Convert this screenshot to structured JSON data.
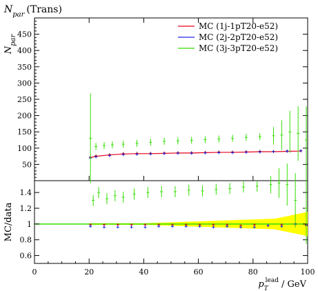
{
  "title": "N_par (Trans)",
  "chart_data": [
    {
      "panel": "main",
      "type": "scatter",
      "ylabel": "N_par",
      "xlabel": "",
      "xlim": [
        0,
        100
      ],
      "ylim": [
        0,
        500
      ],
      "yticks": [
        50,
        100,
        150,
        200,
        250,
        300,
        350,
        400,
        450
      ],
      "legend_position": "top-right",
      "colors": {
        "data": "#000000",
        "mc1": "#e8001a",
        "mc2": "#2020e8",
        "mc3": "#33dd00"
      },
      "series": [
        {
          "name": "data",
          "x": [
            20.5,
            22.5,
            27.5,
            32.5,
            37.5,
            42.5,
            47.5,
            52.5,
            57.5,
            62.5,
            67.5,
            72.5,
            77.5,
            82.5,
            87.5,
            92.5,
            97.5
          ],
          "y": [
            72,
            76,
            80,
            83,
            84,
            84,
            85,
            86,
            86,
            87,
            88,
            88,
            89,
            90,
            90,
            91,
            92
          ]
        },
        {
          "name": "MC (1j-1pT20-e52)",
          "x": [
            20.5,
            22.5,
            27.5,
            32.5,
            37.5,
            42.5,
            47.5,
            52.5,
            57.5,
            62.5,
            67.5,
            72.5,
            77.5,
            82.5,
            87.5,
            92.5,
            97.5
          ],
          "y": [
            71,
            75,
            79,
            82,
            83,
            83,
            84,
            85,
            85,
            86,
            87,
            87,
            88,
            89,
            89,
            90,
            91
          ]
        },
        {
          "name": "MC (2j-2pT20-e52)",
          "x": [
            20.5,
            22.5,
            27.5,
            32.5,
            37.5,
            42.5,
            47.5,
            52.5,
            57.5,
            62.5,
            67.5,
            72.5,
            77.5,
            82.5,
            87.5,
            92.5,
            97.5
          ],
          "y": [
            70,
            73,
            77,
            80,
            81,
            82,
            83,
            84,
            84,
            85,
            86,
            86,
            87,
            88,
            89,
            90,
            92
          ]
        },
        {
          "name": "MC (3j-3pT20-e52)",
          "x": [
            20.5,
            22.5,
            25.5,
            28.5,
            32.5,
            37.5,
            42.5,
            47.5,
            52.5,
            57.5,
            62.5,
            67.5,
            72.5,
            77.5,
            82.5,
            87.5,
            90.5,
            93.5,
            96.5,
            99.5
          ],
          "y": [
            130,
            105,
            108,
            110,
            112,
            115,
            118,
            121,
            122,
            124,
            126,
            128,
            130,
            133,
            135,
            138,
            140,
            150,
            145,
            125
          ]
        }
      ]
    },
    {
      "panel": "ratio",
      "type": "scatter",
      "ylabel": "MC/data",
      "xlabel": "p_T^lead / GeV",
      "xlim": [
        0,
        100
      ],
      "ylim": [
        0.5,
        1.55
      ],
      "yticks": [
        0.6,
        0.8,
        1,
        1.2,
        1.4
      ],
      "xticks": [
        0,
        20,
        40,
        60,
        80,
        100
      ],
      "series": [
        {
          "name": "MC (1j-1pT20-e52)",
          "x": [
            20.5,
            25.5,
            30.5,
            35.5,
            40.5,
            45.5,
            50.5,
            55.5,
            60.5,
            65.5,
            70.5,
            75.5,
            80.5,
            85.5,
            90.5,
            95.5,
            99.5
          ],
          "y": [
            0.99,
            0.99,
            0.99,
            0.99,
            0.99,
            0.99,
            0.99,
            0.99,
            0.99,
            0.99,
            0.99,
            0.98,
            0.99,
            0.98,
            0.99,
            1.0,
            0.99
          ]
        },
        {
          "name": "MC (2j-2pT20-e52)",
          "x": [
            20.5,
            25.5,
            30.5,
            35.5,
            40.5,
            45.5,
            50.5,
            55.5,
            60.5,
            65.5,
            70.5,
            75.5,
            80.5,
            85.5,
            90.5,
            95.5,
            99.5
          ],
          "y": [
            0.97,
            0.96,
            0.96,
            0.96,
            0.96,
            0.97,
            0.97,
            0.97,
            0.97,
            0.96,
            0.97,
            0.96,
            0.96,
            0.98,
            0.97,
            1.0,
            0.98
          ]
        },
        {
          "name": "MC (3j-3pT20-e52)",
          "x": [
            21.5,
            23.5,
            26.5,
            29.5,
            32.5,
            36.5,
            41.5,
            46.5,
            51.5,
            56.5,
            61.5,
            66.5,
            71.5,
            76.5,
            81.5,
            86.5,
            89.5,
            92.5,
            95.5,
            99.5
          ],
          "y": [
            1.3,
            1.4,
            1.32,
            1.36,
            1.34,
            1.38,
            1.4,
            1.41,
            1.41,
            1.43,
            1.42,
            1.44,
            1.45,
            1.47,
            1.48,
            1.5,
            1.52,
            1.5,
            1.3,
            1.2
          ]
        }
      ]
    }
  ]
}
